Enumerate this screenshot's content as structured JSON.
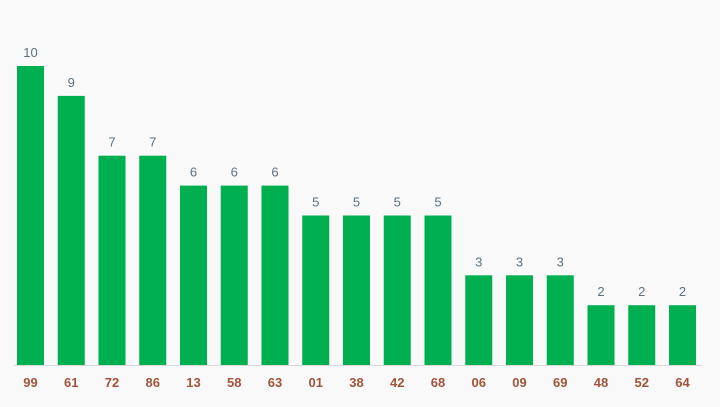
{
  "chart_data": {
    "type": "bar",
    "categories": [
      "99",
      "61",
      "72",
      "86",
      "13",
      "58",
      "63",
      "01",
      "38",
      "42",
      "68",
      "06",
      "09",
      "69",
      "48",
      "52",
      "64"
    ],
    "values": [
      10,
      9,
      7,
      7,
      6,
      6,
      6,
      5,
      5,
      5,
      5,
      3,
      3,
      3,
      2,
      2,
      2
    ],
    "title": "",
    "xlabel": "",
    "ylabel": "",
    "ylim": [
      0,
      10
    ],
    "grid": false,
    "legend": "none",
    "data_labels": true,
    "colors": {
      "bar": "#00b050",
      "value_label": "#5b7382",
      "category_label": "#a0543c",
      "axis_line": "#d9d9d9",
      "background": "#f9f9f9"
    }
  }
}
